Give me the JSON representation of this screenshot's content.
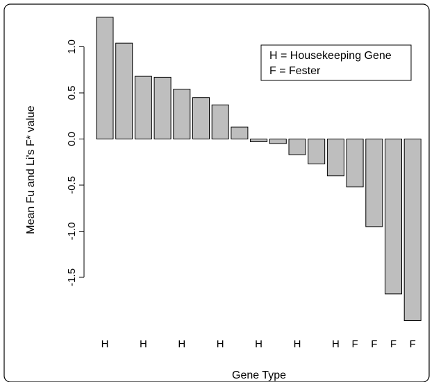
{
  "chart_data": {
    "type": "bar",
    "title": "",
    "xlabel": "Gene Type",
    "ylabel": "Mean Fu and Li's F* value",
    "ylim": [
      -1.9,
      1.3
    ],
    "yticks": [
      1.0,
      0.5,
      0.0,
      -0.5,
      -1.0,
      -1.5
    ],
    "ytick_labels": [
      "1.0",
      "0.5",
      "0.0",
      "-0.5",
      "-1.0",
      "-1.5"
    ],
    "grid": false,
    "legend": {
      "placement": "top-right",
      "entries": [
        "H = Housekeeping Gene",
        "F = Fester"
      ]
    },
    "categories": [
      "H",
      "",
      "H",
      "",
      "H",
      "",
      "H",
      "",
      "H",
      "",
      "H",
      "",
      "H",
      "F",
      "F",
      "F",
      "F"
    ],
    "values": [
      1.32,
      1.04,
      0.68,
      0.67,
      0.54,
      0.45,
      0.37,
      0.13,
      -0.03,
      -0.05,
      -0.17,
      -0.27,
      -0.4,
      -0.52,
      -0.95,
      -1.68,
      -1.97
    ],
    "colors": {
      "bar_fill": "#bebebe",
      "bar_stroke": "#000000",
      "axis": "#000000",
      "frame": "#000000"
    }
  }
}
